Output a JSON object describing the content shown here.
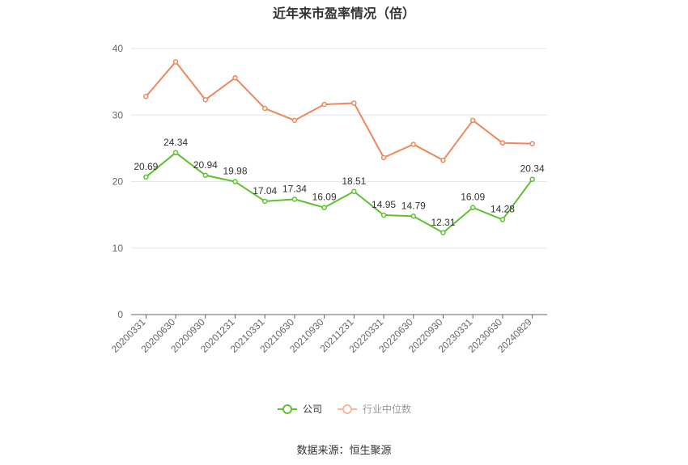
{
  "chart_data": {
    "type": "line",
    "title": "近年来市盈率情况（倍）",
    "categories": [
      "20200331",
      "20200630",
      "20200930",
      "20201231",
      "20210331",
      "20210630",
      "20210930",
      "20211231",
      "20220331",
      "20220630",
      "20220930",
      "20230331",
      "20230630",
      "20240829"
    ],
    "series": [
      {
        "name": "公司",
        "values": [
          20.69,
          24.34,
          20.94,
          19.98,
          17.04,
          17.34,
          16.09,
          18.51,
          14.95,
          14.79,
          12.31,
          16.09,
          14.28,
          20.34
        ],
        "color": "#5ec12d",
        "data_labels": true
      },
      {
        "name": "行业中位数",
        "values": [
          32.8,
          38.0,
          32.3,
          35.6,
          31.0,
          29.2,
          31.6,
          31.8,
          23.6,
          25.6,
          23.2,
          29.2,
          25.8,
          25.7
        ],
        "color": "#f0875a",
        "data_labels": false
      }
    ],
    "ylim": [
      0,
      40
    ],
    "yticks": [
      0,
      10,
      20,
      30,
      40
    ],
    "grid": true,
    "legend": "bottom-center",
    "source": "数据来源：恒生聚源"
  }
}
